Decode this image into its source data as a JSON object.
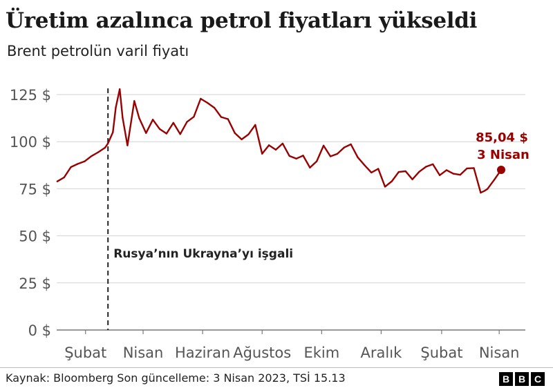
{
  "chart_data": {
    "type": "line",
    "title": "Üretim azalınca petrol fiyatları yükseldi",
    "subtitle": "Brent petrolün varil fiyatı",
    "yticks": [
      "0 $",
      "25 $",
      "50 $",
      "75 $",
      "100 $",
      "125 $"
    ],
    "ytick_values": [
      0,
      25,
      50,
      75,
      100,
      125
    ],
    "ylim": [
      0,
      125
    ],
    "xticks": [
      "Şubat",
      "Nisan",
      "Haziran",
      "Ağustos",
      "Ekim",
      "Aralık",
      "Şubat",
      "Nisan"
    ],
    "xtick_dates": [
      "2022-02-01",
      "2022-04-01",
      "2022-06-01",
      "2022-08-01",
      "2022-10-01",
      "2022-12-01",
      "2023-02-01",
      "2023-04-01"
    ],
    "xlim": [
      "2022-01-01",
      "2023-04-03"
    ],
    "grid": true,
    "series": [
      {
        "color": "#990000",
        "x": [
          "2022-01-03",
          "2022-01-10",
          "2022-01-17",
          "2022-01-24",
          "2022-01-31",
          "2022-02-07",
          "2022-02-14",
          "2022-02-21",
          "2022-02-24",
          "2022-03-01",
          "2022-03-04",
          "2022-03-08",
          "2022-03-11",
          "2022-03-16",
          "2022-03-23",
          "2022-03-28",
          "2022-04-04",
          "2022-04-11",
          "2022-04-18",
          "2022-04-25",
          "2022-05-02",
          "2022-05-09",
          "2022-05-16",
          "2022-05-23",
          "2022-05-30",
          "2022-06-06",
          "2022-06-13",
          "2022-06-20",
          "2022-06-27",
          "2022-07-04",
          "2022-07-11",
          "2022-07-18",
          "2022-07-25",
          "2022-08-01",
          "2022-08-08",
          "2022-08-15",
          "2022-08-22",
          "2022-08-29",
          "2022-09-05",
          "2022-09-12",
          "2022-09-19",
          "2022-09-26",
          "2022-10-03",
          "2022-10-10",
          "2022-10-17",
          "2022-10-24",
          "2022-10-31",
          "2022-11-07",
          "2022-11-14",
          "2022-11-21",
          "2022-11-28",
          "2022-12-05",
          "2022-12-12",
          "2022-12-19",
          "2022-12-26",
          "2023-01-02",
          "2023-01-09",
          "2023-01-16",
          "2023-01-23",
          "2023-01-30",
          "2023-02-06",
          "2023-02-13",
          "2023-02-20",
          "2023-02-27",
          "2023-03-06",
          "2023-03-13",
          "2023-03-17",
          "2023-03-20",
          "2023-03-27",
          "2023-04-03"
        ],
        "y": [
          78.9,
          81.0,
          86.5,
          88.2,
          89.5,
          92.3,
          94.4,
          96.8,
          99.1,
          105.0,
          118.1,
          127.9,
          112.7,
          98.0,
          121.6,
          112.5,
          104.6,
          111.7,
          106.7,
          104.3,
          110.0,
          104.0,
          110.5,
          113.2,
          122.8,
          120.6,
          118.0,
          113.1,
          112.0,
          104.6,
          101.2,
          103.9,
          108.9,
          93.6,
          98.1,
          95.7,
          99.0,
          92.4,
          91.0,
          92.6,
          86.2,
          89.6,
          97.9,
          92.2,
          93.5,
          96.9,
          98.6,
          91.7,
          87.5,
          83.6,
          85.6,
          76.1,
          79.0,
          83.9,
          84.3,
          80.0,
          84.0,
          86.7,
          88.0,
          82.2,
          84.9,
          83.0,
          82.4,
          85.8,
          86.0,
          72.9,
          73.9,
          74.9,
          79.8,
          85.04
        ]
      }
    ],
    "annotations": {
      "event_label": "Rusya’nın Ukrayna’yı işgali",
      "event_date": "2022-02-24",
      "last_value_label": "85,04 $",
      "last_date_label": "3 Nisan"
    },
    "source": "Kaynak: Bloomberg Son güncelleme: 3 Nisan 2023, TSİ 15.13"
  },
  "branding": {
    "letters": [
      "B",
      "B",
      "C"
    ]
  }
}
